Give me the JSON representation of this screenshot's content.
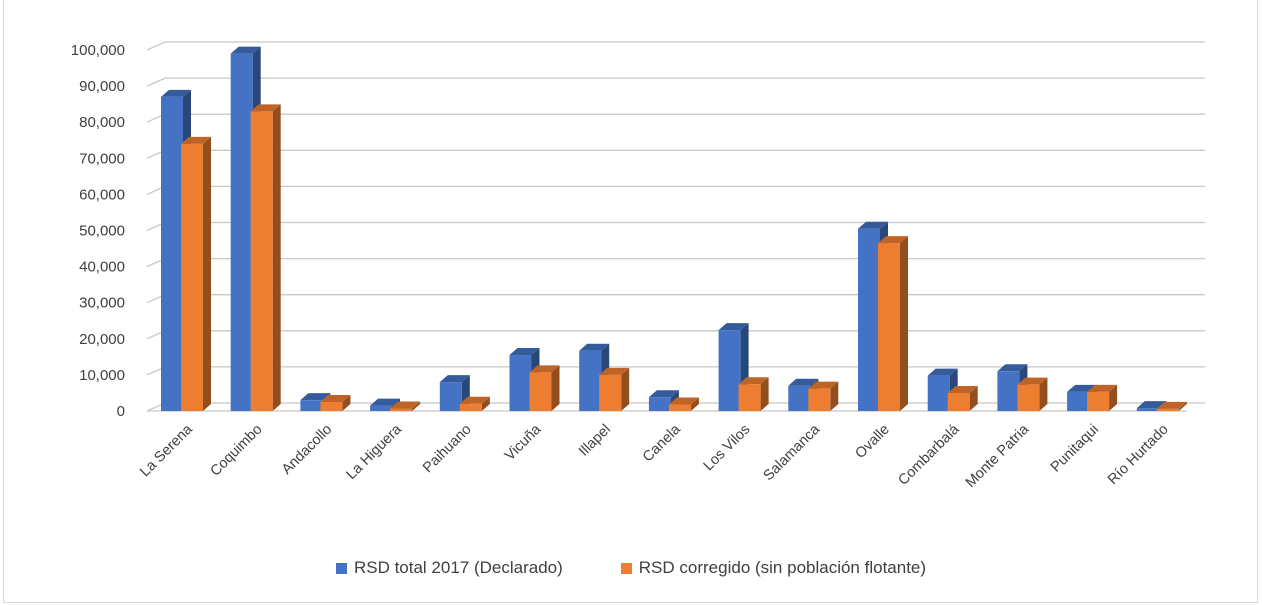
{
  "chart_data": {
    "type": "bar",
    "title": "",
    "xlabel": "",
    "ylabel": "",
    "ylim": [
      0,
      100000
    ],
    "ytick_step": 10000,
    "yticks": [
      "0",
      "10,000",
      "20,000",
      "30,000",
      "40,000",
      "50,000",
      "60,000",
      "70,000",
      "80,000",
      "90,000",
      "100,000"
    ],
    "grid": true,
    "style": "3d-clustered-column",
    "legend_position": "bottom",
    "categories": [
      "La Serena",
      "Coquimbo",
      "Andacollo",
      "La Higuera",
      "Paihuano",
      "Vicuña",
      "Illapel",
      "Canela",
      "Los Vilos",
      "Salamanca",
      "Ovalle",
      "Combarbalá",
      "Monte Patria",
      "Punitaqui",
      "Río Hurtado"
    ],
    "series": [
      {
        "name": "RSD total 2017 (Declarado)",
        "color": "#4472c4",
        "values": [
          87000,
          99000,
          3000,
          1500,
          8000,
          15500,
          16700,
          3800,
          22400,
          7000,
          50500,
          9800,
          11000,
          5300,
          800
        ]
      },
      {
        "name": "RSD corregido (sin población flotante)",
        "color": "#ed7d31",
        "values": [
          74000,
          83000,
          2500,
          700,
          2000,
          10700,
          10000,
          1800,
          7400,
          6200,
          46500,
          5000,
          7300,
          5300,
          600
        ]
      }
    ]
  }
}
